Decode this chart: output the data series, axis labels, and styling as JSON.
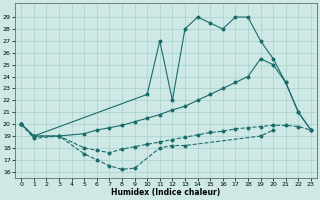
{
  "xlabel": "Humidex (Indice chaleur)",
  "xlim": [
    -0.5,
    23.5
  ],
  "ylim": [
    15.5,
    30.2
  ],
  "yticks": [
    16,
    17,
    18,
    19,
    20,
    21,
    22,
    23,
    24,
    25,
    26,
    27,
    28,
    29
  ],
  "xticks": [
    0,
    1,
    2,
    3,
    4,
    5,
    6,
    7,
    8,
    9,
    10,
    11,
    12,
    13,
    14,
    15,
    16,
    17,
    18,
    19,
    20,
    21,
    22,
    23
  ],
  "bg_color": "#cde8e5",
  "line_color": "#1a6b6b",
  "line_A_x": [
    0,
    1,
    3,
    5,
    6,
    7,
    8,
    9,
    11,
    12,
    13,
    19,
    20
  ],
  "line_A_y": [
    20,
    18.8,
    19,
    17.5,
    17.0,
    16.5,
    16.2,
    16.3,
    18.0,
    18.2,
    18.2,
    19.0,
    19.5
  ],
  "line_B_x": [
    0,
    1,
    10,
    11,
    12,
    13,
    14,
    15,
    16,
    17,
    18,
    19,
    20,
    21,
    22,
    23
  ],
  "line_B_y": [
    20,
    19,
    22.5,
    27.0,
    22.0,
    28.0,
    29.0,
    28.5,
    28.0,
    29.0,
    29.0,
    27.0,
    25.5,
    23.5,
    21.0,
    19.5
  ],
  "line_C_x": [
    0,
    1,
    3,
    5,
    6,
    7,
    8,
    9,
    10,
    11,
    12,
    13,
    14,
    15,
    16,
    17,
    18,
    19,
    20,
    21,
    22,
    23
  ],
  "line_C_y": [
    20,
    19,
    19,
    19.2,
    19.5,
    19.7,
    19.9,
    20.2,
    20.5,
    20.8,
    21.2,
    21.5,
    22.0,
    22.5,
    23.0,
    23.5,
    24.0,
    25.5,
    25.0,
    23.5,
    21.0,
    19.5
  ],
  "line_D_x": [
    0,
    1,
    3,
    5,
    6,
    7,
    8,
    9,
    10,
    11,
    12,
    13,
    14,
    15,
    16,
    17,
    18,
    19,
    20,
    21,
    22,
    23
  ],
  "line_D_y": [
    20,
    19,
    19,
    18.0,
    17.8,
    17.6,
    17.9,
    18.1,
    18.3,
    18.5,
    18.7,
    18.9,
    19.1,
    19.3,
    19.4,
    19.6,
    19.7,
    19.8,
    19.9,
    19.9,
    19.8,
    19.5
  ]
}
